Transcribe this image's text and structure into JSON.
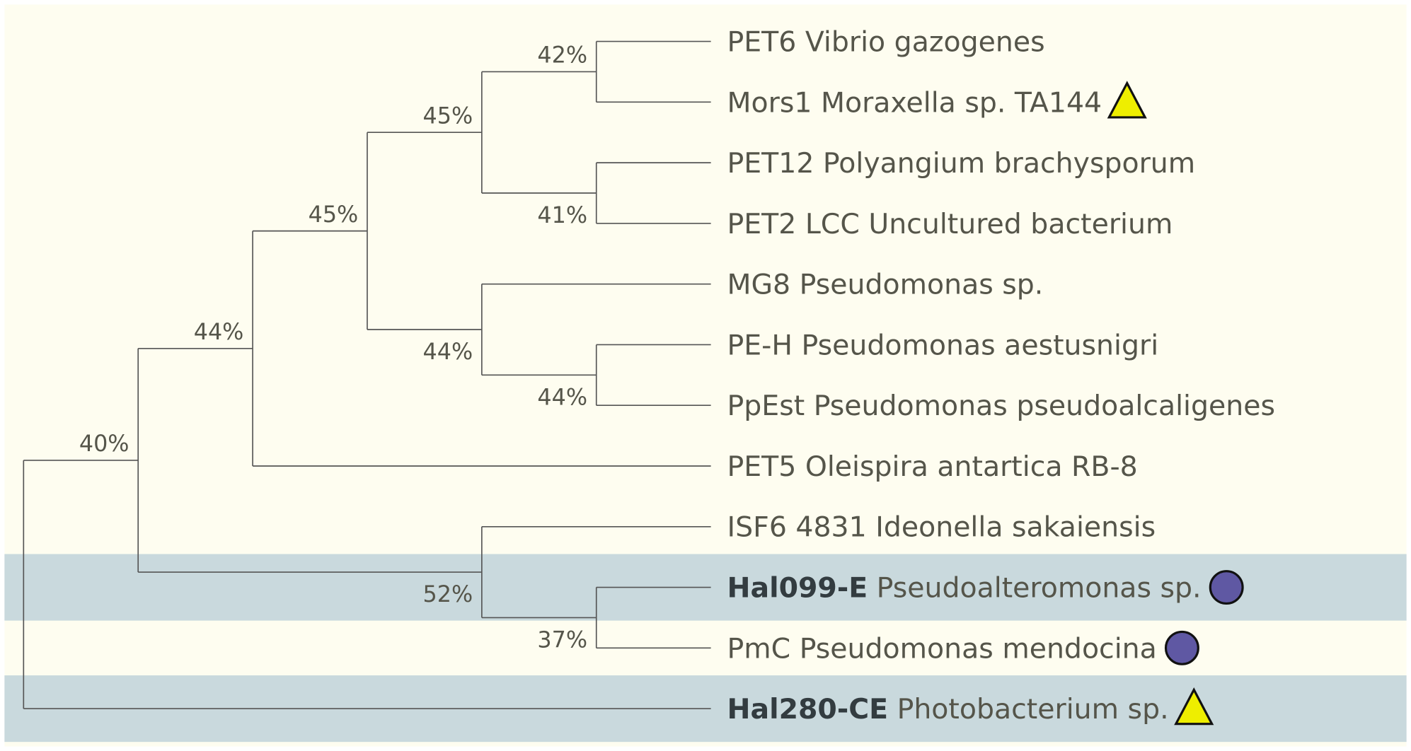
{
  "colors": {
    "background": "#fefdf0",
    "highlight_band": "#c9d9dd",
    "branch": "#555555",
    "text": "#55554a",
    "triangle_marker": "#eeee00",
    "circle_marker": "#5f58a3"
  },
  "leaves": [
    {
      "id": "pet6",
      "bold": "",
      "name": "PET6 Vibrio gazogenes",
      "marker": null,
      "highlight": false
    },
    {
      "id": "mors1",
      "bold": "",
      "name": "Mors1 Moraxella sp. TA144",
      "marker": "triangle",
      "highlight": false
    },
    {
      "id": "pet12",
      "bold": "",
      "name": "PET12 Polyangium brachysporum",
      "marker": null,
      "highlight": false
    },
    {
      "id": "pet2",
      "bold": "",
      "name": "PET2 LCC Uncultured bacterium",
      "marker": null,
      "highlight": false
    },
    {
      "id": "mg8",
      "bold": "",
      "name": "MG8 Pseudomonas sp.",
      "marker": null,
      "highlight": false
    },
    {
      "id": "peh",
      "bold": "",
      "name": "PE-H Pseudomonas aestusnigri",
      "marker": null,
      "highlight": false
    },
    {
      "id": "ppest",
      "bold": "",
      "name": "PpEst Pseudomonas pseudoalcaligenes",
      "marker": null,
      "highlight": false
    },
    {
      "id": "pet5",
      "bold": "",
      "name": "PET5 Oleispira antartica RB-8",
      "marker": null,
      "highlight": false
    },
    {
      "id": "isf6",
      "bold": "",
      "name": "ISF6 4831 Ideonella sakaiensis",
      "marker": null,
      "highlight": false
    },
    {
      "id": "hal099",
      "bold": "Hal099-E",
      "name": " Pseudoalteromonas sp.",
      "marker": "circle",
      "highlight": true
    },
    {
      "id": "pmc",
      "bold": "",
      "name": "PmC Pseudomonas mendocina",
      "marker": "circle",
      "highlight": false
    },
    {
      "id": "hal280",
      "bold": "Hal280-CE",
      "name": " Photobacterium sp.",
      "marker": "triangle",
      "highlight": true
    }
  ],
  "tree": {
    "support": null,
    "children": [
      {
        "support": "40%",
        "label_side": "above",
        "children": [
          {
            "support": "44%",
            "label_side": "above",
            "children": [
              {
                "support": "45%",
                "label_side": "above",
                "children": [
                  {
                    "support": "45%",
                    "label_side": "above",
                    "children": [
                      {
                        "support": "42%",
                        "label_side": "above",
                        "children": [
                          "pet6",
                          "mors1"
                        ]
                      },
                      {
                        "support": "41%",
                        "label_side": "below",
                        "children": [
                          "pet12",
                          "pet2"
                        ]
                      }
                    ]
                  },
                  {
                    "support": "44%",
                    "label_side": "below",
                    "children": [
                      "mg8",
                      {
                        "support": "44%",
                        "label_side": "below",
                        "children": [
                          "peh",
                          "ppest"
                        ]
                      }
                    ]
                  }
                ]
              },
              "pet5"
            ]
          },
          {
            "support": "52%",
            "label_side": "below",
            "children": [
              "isf6",
              {
                "support": "37%",
                "label_side": "below",
                "children": [
                  "hal099",
                  "pmc"
                ]
              }
            ]
          }
        ]
      },
      "hal280"
    ]
  }
}
